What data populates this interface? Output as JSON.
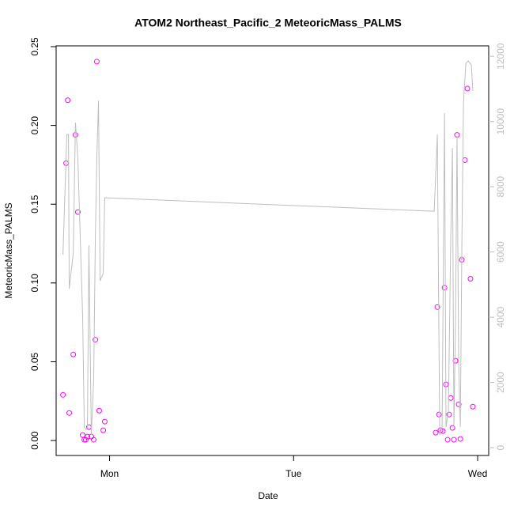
{
  "chart_data": {
    "type": "scatter",
    "title": "ATOM2 Northeast_Pacific_2 MeteoricMass_PALMS",
    "xlabel": "Date",
    "ylabel": "MeteoricMass_PALMS",
    "xlim": [
      0.71,
      3.06
    ],
    "xticks": [
      {
        "value": 1,
        "label": "Mon"
      },
      {
        "value": 2,
        "label": "Tue"
      },
      {
        "value": 3,
        "label": "Wed"
      }
    ],
    "ylim": [
      -0.0095,
      0.2505
    ],
    "yticks": [
      {
        "value": 0,
        "label": "0.00"
      },
      {
        "value": 0.05,
        "label": "0.05"
      },
      {
        "value": 0.1,
        "label": "0.10"
      },
      {
        "value": 0.15,
        "label": "0.15"
      },
      {
        "value": 0.2,
        "label": "0.20"
      },
      {
        "value": 0.25,
        "label": "0.25"
      }
    ],
    "y2lim": [
      -240,
      12320
    ],
    "y2ticks": [
      0,
      2000,
      4000,
      6000,
      8000,
      10000,
      12000
    ],
    "y2color": "#bebebe",
    "series": [
      {
        "type": "scatter",
        "color": "#ff00ff",
        "x": [
          0.747,
          0.764,
          0.773,
          0.781,
          0.803,
          0.815,
          0.828,
          0.854,
          0.863,
          0.871,
          0.88,
          0.888,
          0.901,
          0.914,
          0.923,
          0.931,
          0.944,
          0.966,
          0.974,
          2.772,
          2.781,
          2.79,
          2.798,
          2.811,
          2.82,
          2.828,
          2.837,
          2.845,
          2.854,
          2.863,
          2.871,
          2.88,
          2.888,
          2.897,
          2.906,
          2.914,
          2.931,
          2.944,
          2.961,
          2.974
        ],
        "values": [
          0.029,
          0.176,
          0.216,
          0.0175,
          0.0546,
          0.194,
          0.145,
          0.0035,
          0.0005,
          0.0005,
          0.0025,
          0.0085,
          0.0025,
          0.0005,
          0.064,
          0.2405,
          0.019,
          0.0065,
          0.012,
          0.005,
          0.0847,
          0.0165,
          0.0065,
          0.006,
          0.097,
          0.0356,
          0.0005,
          0.0165,
          0.027,
          0.008,
          0.0005,
          0.0506,
          0.194,
          0.023,
          0.001,
          0.1147,
          0.178,
          0.2234,
          0.1027,
          0.0215
        ]
      },
      {
        "type": "line",
        "color": "#bebebe",
        "axis": "y2",
        "x": [
          0.747,
          0.768,
          0.777,
          0.781,
          0.803,
          0.815,
          0.828,
          0.854,
          0.863,
          0.871,
          0.88,
          0.888,
          0.901,
          0.914,
          0.923,
          0.931,
          0.94,
          0.949,
          0.966,
          0.974,
          0.979,
          2.764,
          2.781,
          2.794,
          2.807,
          2.82,
          2.828,
          2.841,
          2.854,
          2.863,
          2.871,
          2.88,
          2.888,
          2.897,
          2.906,
          2.914,
          2.923,
          2.936,
          2.949,
          2.966,
          2.974
        ],
        "values": [
          5915,
          9600,
          9600,
          4873,
          5964,
          9964,
          8873,
          4024,
          630,
          557,
          630,
          6206,
          388,
          2085,
          6448,
          8873,
          10642,
          5115,
          5358,
          7661,
          7661,
          7248,
          9600,
          388,
          630,
          10254,
          630,
          1115,
          6448,
          9188,
          630,
          4024,
          9552,
          2570,
          630,
          6085,
          10570,
          11782,
          11855,
          11733,
          10933
        ]
      }
    ]
  }
}
